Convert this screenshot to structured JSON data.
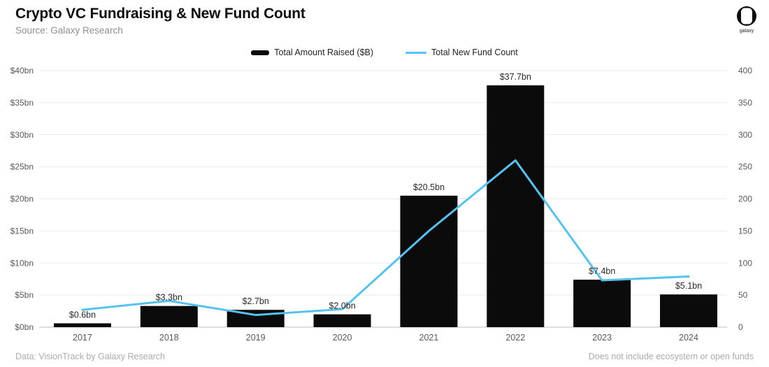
{
  "header": {
    "title": "Crypto VC Fundraising & New Fund Count",
    "subtitle": "Source: Galaxy Research",
    "logo_text": "galaxy"
  },
  "footer": {
    "left": "Data: VisionTrack by Galaxy Research",
    "right": "Does not include ecosystem or open funds"
  },
  "colors": {
    "bar": "#0b0b0b",
    "line": "#55c3f0",
    "grid": "#e9e9e9",
    "baseline": "#bdbdbd",
    "tick_text": "#595959",
    "bar_label_text": "#2b2b2b"
  },
  "chart_data": {
    "type": "bar",
    "subtype": "combo-bar-line-dual-axis",
    "title": "Crypto VC Fundraising & New Fund Count",
    "categories": [
      "2017",
      "2018",
      "2019",
      "2020",
      "2021",
      "2022",
      "2023",
      "2024"
    ],
    "series": [
      {
        "name": "Total Amount Raised ($B)",
        "type": "bar",
        "axis": "left",
        "color": "#0b0b0b",
        "values": [
          0.6,
          3.3,
          2.7,
          2.0,
          20.5,
          37.7,
          7.4,
          5.1
        ],
        "labels": [
          "$0.6bn",
          "$3.3bn",
          "$2.7bn",
          "$2.0bn",
          "$20.5bn",
          "$37.7bn",
          "$7.4bn",
          "$5.1bn"
        ]
      },
      {
        "name": "Total New Fund Count",
        "type": "line",
        "axis": "right",
        "color": "#55c3f0",
        "values": [
          27,
          41,
          19,
          28,
          150,
          260,
          73,
          79
        ]
      }
    ],
    "left_axis": {
      "min": 0,
      "max": 40,
      "step": 5,
      "ticks": [
        "$0bn",
        "$5bn",
        "$10bn",
        "$15bn",
        "$20bn",
        "$25bn",
        "$30bn",
        "$35bn",
        "$40bn"
      ]
    },
    "right_axis": {
      "min": 0,
      "max": 400,
      "step": 50,
      "ticks": [
        "0",
        "50",
        "100",
        "150",
        "200",
        "250",
        "300",
        "350",
        "400"
      ]
    },
    "grid": true,
    "legend_position": "top-center"
  }
}
